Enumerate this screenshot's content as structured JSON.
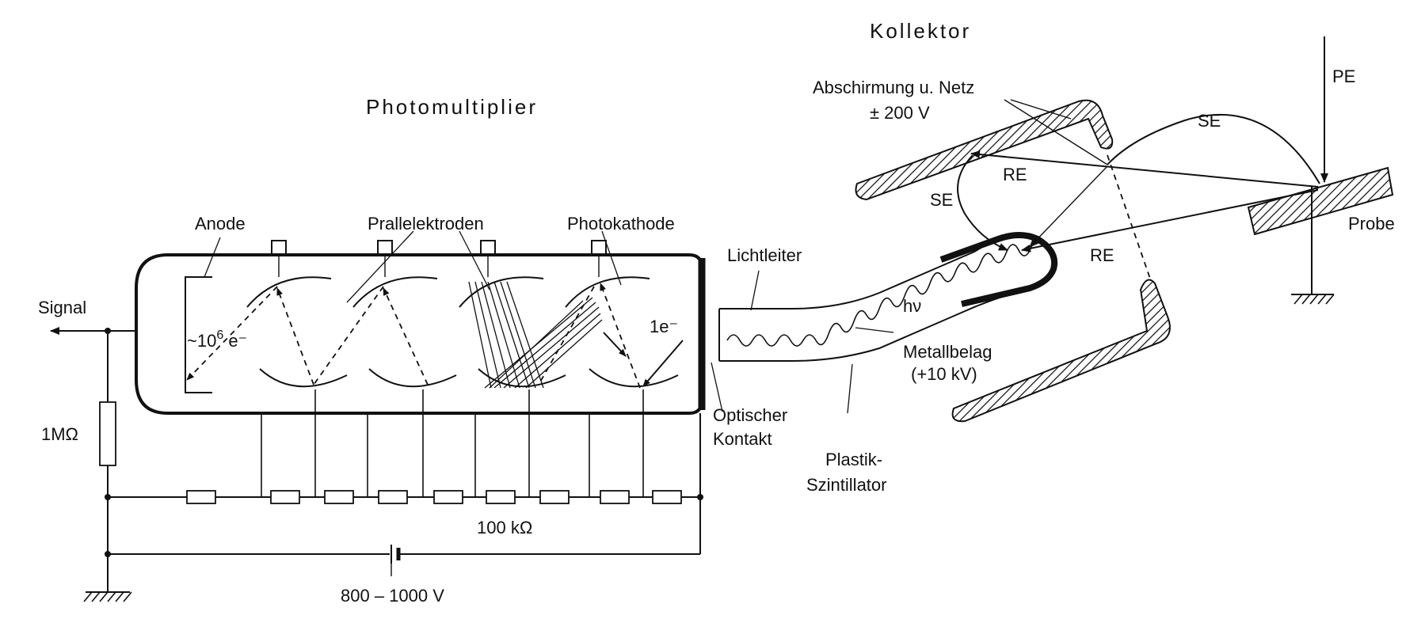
{
  "labels": {
    "kollektor": "Kollektor",
    "photomultiplier": "Photomultiplier",
    "abschirmung": "Abschirmung u. Netz",
    "abschirmung_voltage": "± 200 V",
    "pe": "PE",
    "se_top": "SE",
    "se_left": "SE",
    "re_top": "RE",
    "re_right": "RE",
    "probe": "Probe",
    "anode": "Anode",
    "prallelektroden": "Prallelektroden",
    "photokathode": "Photokathode",
    "lichtleiter": "Lichtleiter",
    "signal": "Signal",
    "gain_prefix": "~10",
    "gain_exp": "6",
    "gain_suffix": " e⁻",
    "one_e": "1e⁻",
    "hv": "hν",
    "metallbelag": "Metallbelag",
    "metallbelag_voltage": "(+10 kV)",
    "optischer": "Optischer",
    "kontakt": "Kontakt",
    "plastik": "Plastik-",
    "szintillator": "Szintillator",
    "resistor_1m": "1MΩ",
    "resistor_100k": "100 kΩ",
    "supply_voltage": "800 – 1000 V"
  }
}
